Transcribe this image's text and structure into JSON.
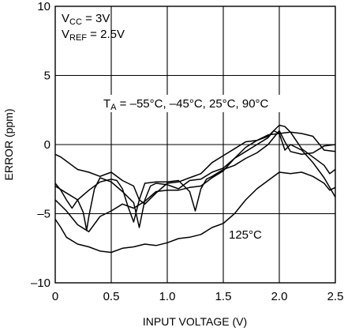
{
  "chart_data": {
    "type": "line",
    "title": "",
    "xlabel": "INPUT VOLTAGE (V)",
    "ylabel": "ERROR (ppm)",
    "xlim": [
      0,
      2.5
    ],
    "ylim": [
      -10,
      10
    ],
    "x_ticks": [
      "0",
      "0.5",
      "1.0",
      "1.5",
      "2.0",
      "2.5"
    ],
    "y_ticks": [
      "10",
      "5",
      "0",
      "–5",
      "–10"
    ],
    "grid": true,
    "annotations": {
      "vcc_main": "V",
      "vcc_sub": "CC",
      "vcc_rest": " = 3V",
      "vref_main": "V",
      "vref_sub": "REF",
      "vref_rest": " = 2.5V",
      "ta_main": "T",
      "ta_sub": "A",
      "ta_rest": " = –55°C, –45°C, 25°C, 90°C",
      "t125": "125°C"
    },
    "series": [
      {
        "x": [
          0,
          0.05,
          0.1,
          0.15,
          0.2,
          0.25,
          0.28,
          0.3,
          0.35,
          0.4,
          0.5,
          0.6,
          0.7,
          0.75,
          0.8,
          0.85,
          0.9,
          1.0,
          1.1,
          1.2,
          1.3,
          1.4,
          1.5,
          1.6,
          1.7,
          1.8,
          1.9,
          1.95,
          2.0,
          2.05,
          2.1,
          2.2,
          2.3,
          2.4,
          2.5
        ],
        "y": [
          -2.8,
          -3.3,
          -4.0,
          -4.6,
          -4.0,
          -4.9,
          -6.2,
          -5.2,
          -3.2,
          -2.4,
          -2.7,
          -3.4,
          -4.2,
          -6.0,
          -4.0,
          -3.0,
          -2.8,
          -2.9,
          -3.2,
          -2.6,
          -2.5,
          -2.0,
          -1.7,
          -1.0,
          -0.5,
          0.0,
          0.5,
          1.0,
          0.8,
          -0.4,
          0.0,
          -0.4,
          -1.3,
          -2.4,
          -3.8
        ]
      },
      {
        "x": [
          0,
          0.05,
          0.1,
          0.15,
          0.2,
          0.3,
          0.4,
          0.5,
          0.6,
          0.7,
          0.75,
          0.8,
          0.9,
          1.0,
          1.1,
          1.2,
          1.3,
          1.4,
          1.5,
          1.6,
          1.7,
          1.8,
          1.9,
          2.0,
          2.05,
          2.1,
          2.2,
          2.3,
          2.4,
          2.5
        ],
        "y": [
          -0.7,
          -0.9,
          -1.2,
          -1.5,
          -1.8,
          -2.0,
          -2.3,
          -2.0,
          -2.6,
          -3.0,
          -4.0,
          -4.3,
          -3.5,
          -2.8,
          -2.7,
          -2.4,
          -2.1,
          -1.3,
          -0.8,
          -0.3,
          0.2,
          0.3,
          0.6,
          1.4,
          1.3,
          0.9,
          0.8,
          0.6,
          -0.4,
          -0.5
        ]
      },
      {
        "x": [
          0,
          0.1,
          0.2,
          0.3,
          0.4,
          0.5,
          0.55,
          0.6,
          0.65,
          0.7,
          0.75,
          0.8,
          0.9,
          1.0,
          1.1,
          1.2,
          1.25,
          1.3,
          1.35,
          1.4,
          1.5,
          1.6,
          1.7,
          1.8,
          1.9,
          2.0,
          2.05,
          2.1,
          2.2,
          2.3,
          2.4,
          2.5
        ],
        "y": [
          -3.0,
          -3.5,
          -4.0,
          -3.3,
          -2.7,
          -2.5,
          -2.6,
          -3.2,
          -4.5,
          -5.6,
          -4.0,
          -2.8,
          -2.7,
          -2.7,
          -2.6,
          -3.4,
          -4.8,
          -3.2,
          -2.5,
          -2.3,
          -1.8,
          -1.5,
          -1.0,
          -0.6,
          0.0,
          1.0,
          0.2,
          -0.5,
          -0.7,
          -0.6,
          -0.1,
          0.0
        ]
      },
      {
        "x": [
          0,
          0.1,
          0.2,
          0.3,
          0.4,
          0.5,
          0.6,
          0.7,
          0.8,
          0.9,
          1.0,
          1.1,
          1.2,
          1.3,
          1.4,
          1.5,
          1.6,
          1.7,
          1.8,
          1.9,
          2.0,
          2.1,
          2.2,
          2.3,
          2.4,
          2.45,
          2.5
        ],
        "y": [
          -4.0,
          -4.8,
          -5.8,
          -6.3,
          -5.2,
          -4.8,
          -4.3,
          -4.6,
          -4.1,
          -3.4,
          -3.3,
          -3.3,
          -3.1,
          -3.0,
          -2.4,
          -1.9,
          -1.0,
          -0.2,
          0.3,
          0.7,
          0.8,
          0.9,
          -0.3,
          -0.9,
          -1.5,
          -2.1,
          -1.8
        ]
      },
      {
        "x": [
          0,
          0.05,
          0.1,
          0.2,
          0.3,
          0.4,
          0.5,
          0.6,
          0.7,
          0.8,
          0.9,
          1.0,
          1.1,
          1.2,
          1.3,
          1.4,
          1.5,
          1.6,
          1.7,
          1.8,
          1.9,
          2.0,
          2.1,
          2.2,
          2.3,
          2.4,
          2.45,
          2.5
        ],
        "y": [
          -5.4,
          -6.0,
          -6.7,
          -7.2,
          -7.4,
          -7.7,
          -7.8,
          -7.5,
          -7.4,
          -7.2,
          -7.3,
          -7.1,
          -6.8,
          -6.7,
          -6.5,
          -6.0,
          -5.7,
          -5.0,
          -4.0,
          -3.2,
          -2.6,
          -2.0,
          -2.1,
          -2.0,
          -2.3,
          -2.8,
          -3.3,
          -3.1
        ]
      }
    ]
  }
}
